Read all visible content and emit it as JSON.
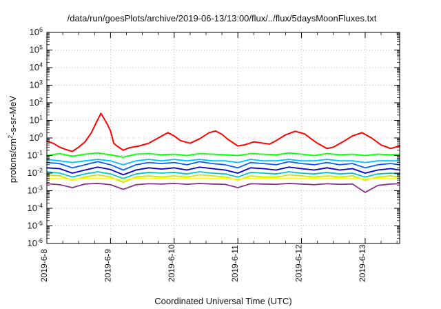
{
  "chart_data": {
    "type": "line",
    "title": "/data/run/goesPlots/archive/2019-06-13/13:00/flux/../flux/5daysMoonFluxes.txt",
    "xlabel": "Coordinated Universal Time (UTC)",
    "ylabel": {
      "prefix": "protons/cm",
      "sup": "2",
      "suffix": "-s-sr-MeV"
    },
    "x_range": [
      "2019-06-08T00:00",
      "2019-06-13T13:00"
    ],
    "x_ticks": [
      "2019-6-8",
      "2019-6-9",
      "2019-6-10",
      "2019-6-11",
      "2019-6-12",
      "2019-6-13"
    ],
    "y_scale": "log",
    "y_range": [
      1e-06,
      1000000.0
    ],
    "y_ticks": [
      {
        "base": "10",
        "exp": "-6"
      },
      {
        "base": "10",
        "exp": "-5"
      },
      {
        "base": "10",
        "exp": "-4"
      },
      {
        "base": "10",
        "exp": "-3"
      },
      {
        "base": "10",
        "exp": "-2"
      },
      {
        "base": "10",
        "exp": "-1"
      },
      {
        "base": "10",
        "exp": "0"
      },
      {
        "base": "10",
        "exp": "1"
      },
      {
        "base": "10",
        "exp": "2"
      },
      {
        "base": "10",
        "exp": "3"
      },
      {
        "base": "10",
        "exp": "4"
      },
      {
        "base": "10",
        "exp": "5"
      },
      {
        "base": "10",
        "exp": "6"
      }
    ],
    "grid": true,
    "series": [
      {
        "color": "#ff0000",
        "x": [
          0.0,
          0.1,
          0.2,
          0.3,
          0.4,
          0.5,
          0.6,
          0.7,
          0.78,
          0.85,
          0.95,
          1.0,
          1.05,
          1.1,
          1.2,
          1.3,
          1.45,
          1.6,
          1.75,
          1.9,
          2.0,
          2.1,
          2.25,
          2.4,
          2.55,
          2.65,
          2.75,
          2.85,
          3.0,
          3.1,
          3.25,
          3.4,
          3.5,
          3.6,
          3.75,
          3.9,
          4.05,
          4.15,
          4.25,
          4.4,
          4.5,
          4.65,
          4.8,
          4.95,
          5.1,
          5.25,
          5.4,
          5.542
        ],
        "values": [
          0.65,
          0.5,
          0.3,
          0.22,
          0.17,
          0.3,
          0.6,
          2.0,
          8.0,
          25.0,
          6.0,
          2.5,
          0.5,
          0.35,
          0.2,
          0.28,
          0.35,
          0.5,
          1.0,
          2.0,
          1.3,
          0.7,
          0.5,
          0.9,
          2.0,
          2.5,
          1.6,
          0.8,
          0.35,
          0.4,
          0.6,
          0.5,
          0.45,
          0.7,
          1.5,
          2.4,
          1.7,
          0.9,
          0.5,
          0.25,
          0.3,
          0.6,
          1.3,
          2.0,
          1.0,
          0.4,
          0.25,
          0.35
        ]
      },
      {
        "color": "#00ff00",
        "x": [
          0.0,
          0.2,
          0.4,
          0.6,
          0.8,
          1.0,
          1.2,
          1.4,
          1.6,
          1.8,
          2.0,
          2.2,
          2.4,
          2.6,
          2.8,
          3.0,
          3.2,
          3.4,
          3.6,
          3.8,
          4.0,
          4.2,
          4.4,
          4.6,
          4.8,
          5.0,
          5.2,
          5.4,
          5.542
        ],
        "values": [
          0.1,
          0.13,
          0.09,
          0.12,
          0.14,
          0.11,
          0.08,
          0.12,
          0.13,
          0.11,
          0.12,
          0.1,
          0.13,
          0.12,
          0.11,
          0.1,
          0.13,
          0.12,
          0.11,
          0.14,
          0.12,
          0.1,
          0.13,
          0.11,
          0.12,
          0.1,
          0.12,
          0.11,
          0.12
        ]
      },
      {
        "color": "#00c0ff",
        "x": [
          0.0,
          0.2,
          0.4,
          0.6,
          0.8,
          1.0,
          1.2,
          1.4,
          1.6,
          1.8,
          2.0,
          2.2,
          2.4,
          2.6,
          2.8,
          3.0,
          3.2,
          3.4,
          3.6,
          3.8,
          4.0,
          4.2,
          4.4,
          4.6,
          4.8,
          5.0,
          5.2,
          5.4,
          5.542
        ],
        "values": [
          0.06,
          0.05,
          0.04,
          0.05,
          0.06,
          0.05,
          0.03,
          0.05,
          0.06,
          0.05,
          0.06,
          0.05,
          0.06,
          0.05,
          0.05,
          0.04,
          0.06,
          0.05,
          0.05,
          0.06,
          0.05,
          0.05,
          0.06,
          0.05,
          0.05,
          0.04,
          0.05,
          0.05,
          0.05
        ]
      },
      {
        "color": "#0060ff",
        "x": [
          0.0,
          0.2,
          0.4,
          0.6,
          0.8,
          1.0,
          1.2,
          1.4,
          1.6,
          1.8,
          2.0,
          2.2,
          2.4,
          2.6,
          2.8,
          3.0,
          3.2,
          3.4,
          3.6,
          3.8,
          4.0,
          4.2,
          4.4,
          4.6,
          4.8,
          5.0,
          5.2,
          5.4,
          5.542
        ],
        "values": [
          0.04,
          0.035,
          0.02,
          0.03,
          0.045,
          0.03,
          0.015,
          0.03,
          0.04,
          0.035,
          0.04,
          0.03,
          0.045,
          0.035,
          0.03,
          0.02,
          0.04,
          0.035,
          0.03,
          0.045,
          0.035,
          0.03,
          0.04,
          0.03,
          0.035,
          0.02,
          0.03,
          0.035,
          0.03
        ]
      },
      {
        "color": "#0000cc",
        "x": [
          0.0,
          0.2,
          0.4,
          0.6,
          0.8,
          1.0,
          1.2,
          1.4,
          1.6,
          1.8,
          2.0,
          2.2,
          2.4,
          2.6,
          2.8,
          3.0,
          3.2,
          3.4,
          3.6,
          3.8,
          4.0,
          4.2,
          4.4,
          4.6,
          4.8,
          5.0,
          5.2,
          5.4,
          5.542
        ],
        "values": [
          0.02,
          0.018,
          0.01,
          0.015,
          0.022,
          0.016,
          0.008,
          0.015,
          0.02,
          0.017,
          0.02,
          0.015,
          0.022,
          0.018,
          0.015,
          0.01,
          0.02,
          0.018,
          0.015,
          0.022,
          0.018,
          0.015,
          0.02,
          0.015,
          0.018,
          0.01,
          0.015,
          0.018,
          0.015
        ]
      },
      {
        "color": "#00c8c8",
        "x": [
          0.0,
          0.2,
          0.4,
          0.6,
          0.8,
          1.0,
          1.2,
          1.4,
          1.6,
          1.8,
          2.0,
          2.2,
          2.4,
          2.6,
          2.8,
          3.0,
          3.2,
          3.4,
          3.6,
          3.8,
          4.0,
          4.2,
          4.4,
          4.6,
          4.8,
          5.0,
          5.2,
          5.4,
          5.542
        ],
        "values": [
          0.012,
          0.01,
          0.006,
          0.009,
          0.012,
          0.009,
          0.005,
          0.009,
          0.011,
          0.01,
          0.011,
          0.009,
          0.012,
          0.01,
          0.009,
          0.006,
          0.011,
          0.01,
          0.009,
          0.012,
          0.01,
          0.009,
          0.011,
          0.009,
          0.01,
          0.006,
          0.009,
          0.01,
          0.009
        ]
      },
      {
        "color": "#c8e800",
        "x": [
          0.0,
          0.2,
          0.4,
          0.6,
          0.8,
          1.0,
          1.2,
          1.4,
          1.6,
          1.8,
          2.0,
          2.2,
          2.4,
          2.6,
          2.8,
          3.0,
          3.2,
          3.4,
          3.6,
          3.8,
          4.0,
          4.2,
          4.4,
          4.6,
          4.8,
          5.0,
          5.2,
          5.4,
          5.542
        ],
        "values": [
          0.008,
          0.007,
          0.004,
          0.006,
          0.008,
          0.006,
          0.003,
          0.006,
          0.007,
          0.006,
          0.007,
          0.006,
          0.008,
          0.007,
          0.006,
          0.004,
          0.007,
          0.006,
          0.006,
          0.008,
          0.007,
          0.006,
          0.007,
          0.006,
          0.007,
          0.004,
          0.006,
          0.007,
          0.006
        ]
      },
      {
        "color": "#ffff00",
        "x": [
          0.0,
          0.2,
          0.4,
          0.6,
          0.8,
          1.0,
          1.2,
          1.4,
          1.6,
          1.8,
          2.0,
          2.2,
          2.4,
          2.6,
          2.8,
          3.0,
          3.2,
          3.4,
          3.6,
          3.8,
          4.0,
          4.2,
          4.4,
          4.6,
          4.8,
          5.0,
          5.2,
          5.4,
          5.542
        ],
        "values": [
          0.005,
          0.0048,
          0.0045,
          0.005,
          0.0052,
          0.0048,
          0.0045,
          0.005,
          0.0052,
          0.005,
          0.0051,
          0.0049,
          0.0052,
          0.005,
          0.0049,
          0.0046,
          0.005,
          0.0051,
          0.005,
          0.0052,
          0.005,
          0.0049,
          0.0051,
          0.005,
          0.0051,
          0.0047,
          0.005,
          0.0051,
          0.005
        ]
      },
      {
        "color": "#883388",
        "x": [
          0.0,
          0.2,
          0.4,
          0.6,
          0.8,
          1.0,
          1.2,
          1.4,
          1.6,
          1.8,
          2.0,
          2.2,
          2.4,
          2.6,
          2.8,
          3.0,
          3.2,
          3.4,
          3.6,
          3.8,
          4.0,
          4.2,
          4.4,
          4.6,
          4.8,
          5.0,
          5.2,
          5.4,
          5.542
        ],
        "values": [
          0.0025,
          0.0022,
          0.0015,
          0.0024,
          0.0026,
          0.0022,
          0.0012,
          0.0022,
          0.0025,
          0.0024,
          0.0026,
          0.0023,
          0.0026,
          0.0024,
          0.0023,
          0.0015,
          0.0025,
          0.0024,
          0.0023,
          0.0026,
          0.0024,
          0.0022,
          0.0025,
          0.0023,
          0.0024,
          0.0008,
          0.002,
          0.0024,
          0.0025
        ]
      }
    ]
  }
}
